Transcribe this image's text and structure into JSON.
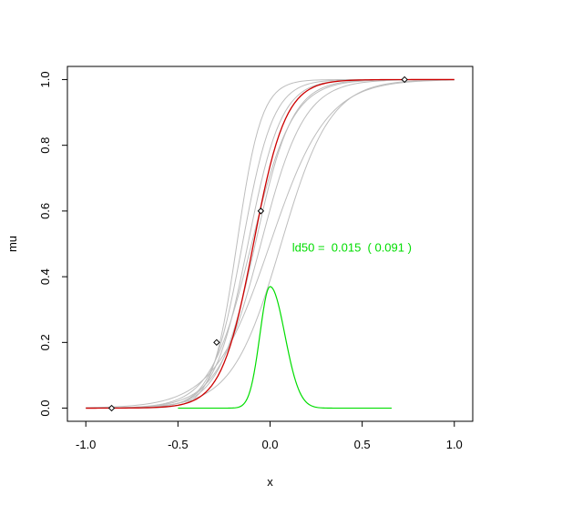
{
  "chart_data": {
    "type": "line",
    "xlabel": "x",
    "ylabel": "mu",
    "xlim": [
      -1.1,
      1.1
    ],
    "ylim": [
      -0.04,
      1.04
    ],
    "x_ticks": [
      "-1.0",
      "-0.5",
      "0.0",
      "0.5",
      "1.0"
    ],
    "y_ticks": [
      "0.0",
      "0.2",
      "0.4",
      "0.6",
      "0.8",
      "1.0"
    ],
    "grid": false,
    "legend": "none",
    "annotation": {
      "text": "ld50 =  0.015  ( 0.091 )",
      "x": 0.12,
      "y": 0.49,
      "color": "#00dd00"
    },
    "observed_points": [
      {
        "x": -0.86,
        "y": 0.0
      },
      {
        "x": -0.29,
        "y": 0.2
      },
      {
        "x": -0.05,
        "y": 0.6
      },
      {
        "x": 0.73,
        "y": 1.0
      }
    ],
    "sample_curves": {
      "color": "#bdbdbd",
      "x_from": -1.0,
      "x_to": 1.0,
      "params": [
        {
          "center": 0.0,
          "slope": 6.5
        },
        {
          "center": 0.06,
          "slope": 7.5
        },
        {
          "center": -0.1,
          "slope": 9.0
        },
        {
          "center": -0.15,
          "slope": 12.0
        },
        {
          "center": -0.18,
          "slope": 15.0
        },
        {
          "center": -0.08,
          "slope": 10.0
        },
        {
          "center": -0.12,
          "slope": 11.0
        },
        {
          "center": -0.05,
          "slope": 8.5
        }
      ]
    },
    "mean_curve": {
      "color": "#cc0000",
      "x_from": -1.0,
      "x_to": 1.0,
      "center": -0.09,
      "slope": 11.5
    },
    "ld50_density": {
      "color": "#00dd00",
      "x_from": -0.5,
      "x_to": 0.66,
      "mode": 0.0,
      "peak": 0.37,
      "sd_left": 0.055,
      "sd_right": 0.08
    }
  }
}
